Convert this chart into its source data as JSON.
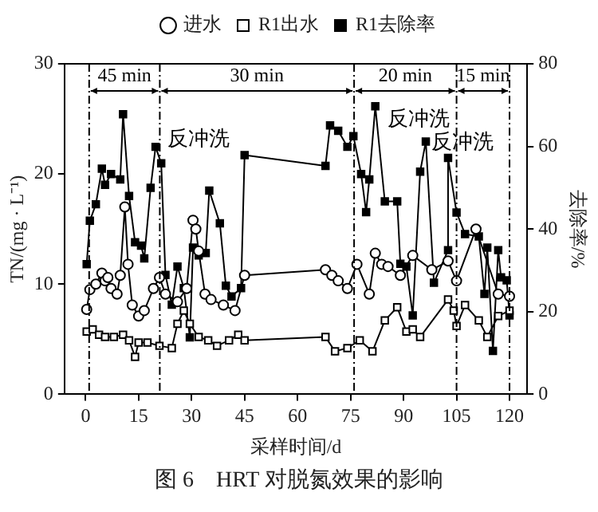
{
  "chart_data": {
    "type": "line",
    "title": "图 6　HRT 对脱氮效果的影响",
    "xlabel": "采样时间/d",
    "ylabel": "TN/(mg · L⁻¹)",
    "y2label": "去除率/%",
    "xlim": [
      -6,
      125
    ],
    "xticks": [
      0,
      15,
      30,
      45,
      60,
      75,
      90,
      105,
      120
    ],
    "ylim": [
      0,
      30
    ],
    "yticks": [
      0,
      10,
      20,
      30
    ],
    "y2lim": [
      0,
      80
    ],
    "y2ticks": [
      0,
      20,
      40,
      60,
      80
    ],
    "legend": "top",
    "grid": false,
    "ref_lines": [
      {
        "axis": "x",
        "value": 1,
        "line_style": "dashed"
      },
      {
        "axis": "x",
        "value": 21,
        "line_style": "dashed"
      },
      {
        "axis": "x",
        "value": 76,
        "line_style": "dashed"
      },
      {
        "axis": "x",
        "value": 105,
        "line_style": "dashed"
      },
      {
        "axis": "x",
        "value": 120,
        "line_style": "dashed"
      }
    ],
    "annotations": [
      "45 min",
      "30 min",
      "20 min",
      "15 min",
      "反冲洗",
      "反冲洗",
      "反冲洗"
    ],
    "series": [
      {
        "name": "进水",
        "color": "#000000",
        "marker": "circle",
        "x": [
          0.3,
          1.2,
          2.9,
          4.6,
          5.5,
          6.3,
          7.2,
          8.9,
          9.8,
          11.1,
          12,
          13.2,
          15,
          16.6,
          19.2,
          20.9,
          22.6,
          26,
          28.6,
          30.4,
          31.2,
          32,
          33.8,
          35.5,
          39,
          42.3,
          45,
          67.9,
          69.7,
          71.5,
          74.1,
          76.8,
          80.3,
          82,
          83.8,
          85.6,
          89.1,
          92.6,
          98,
          102.6,
          105,
          110.5,
          116.8,
          120
        ],
        "values": [
          7.7,
          9.5,
          10,
          11,
          10.3,
          10.6,
          9.6,
          9.1,
          10.8,
          17,
          11.8,
          8.1,
          7.1,
          7.6,
          9.6,
          10.6,
          9.1,
          8.4,
          9.6,
          15.8,
          15,
          13,
          9.1,
          8.6,
          8.1,
          7.6,
          10.8,
          11.3,
          10.8,
          10.3,
          9.6,
          11.8,
          9.1,
          12.8,
          11.8,
          11.6,
          10.8,
          12.6,
          11.3,
          12.1,
          10.3,
          15,
          9.1,
          8.9
        ]
      },
      {
        "name": "R1出水",
        "color": "#000000",
        "marker": "square",
        "x": [
          0.3,
          2,
          3.8,
          5.5,
          8,
          10.6,
          12.3,
          14,
          15,
          17.5,
          20.9,
          24.4,
          26,
          27.8,
          29.5,
          32,
          34.7,
          37.2,
          40.6,
          43.2,
          45,
          67.9,
          70.6,
          74.1,
          77.6,
          81.2,
          84.7,
          88.2,
          90.8,
          92.6,
          94.7,
          102.6,
          104.2,
          105,
          107.4,
          111.3,
          113.7,
          116.8,
          120
        ],
        "values": [
          5.7,
          5.9,
          5.4,
          5.2,
          5.2,
          5.4,
          4.9,
          3.4,
          4.7,
          4.7,
          4.4,
          4.2,
          6.4,
          7.6,
          6.4,
          5.2,
          4.9,
          4.4,
          4.9,
          5.4,
          4.9,
          5.2,
          3.9,
          4.2,
          4.9,
          3.9,
          6.7,
          7.9,
          5.7,
          5.9,
          5.2,
          8.6,
          7.6,
          6.2,
          8.1,
          6.7,
          5.2,
          7.1,
          7.6
        ]
      },
      {
        "name": "R1去除率",
        "color": "#000000",
        "marker": "square",
        "axis": "y2",
        "x": [
          0.3,
          1.2,
          2.9,
          4.6,
          5.5,
          7.2,
          9.8,
          10.6,
          12.3,
          14,
          15.7,
          16.6,
          18.4,
          19.8,
          21.4,
          22.6,
          24.4,
          26,
          27.8,
          29.5,
          30.4,
          32,
          34,
          35,
          38,
          39.7,
          41.3,
          44,
          45,
          67.9,
          69.2,
          71.5,
          74.1,
          75.8,
          78,
          79.4,
          80.3,
          82,
          84.7,
          88.2,
          89.1,
          90.8,
          92.6,
          94.7,
          96.3,
          98.6,
          102.6,
          102.6,
          105,
          107.4,
          111.3,
          112.9,
          113.7,
          115.3,
          116.8,
          117.6,
          119.2,
          120
        ],
        "values": [
          31.5,
          42,
          46,
          54.6,
          50.7,
          53.3,
          52,
          67.8,
          48,
          36.8,
          36,
          32.9,
          50,
          59.9,
          55.9,
          28.9,
          21.7,
          30.9,
          25.7,
          13.8,
          35.5,
          33.6,
          34.2,
          49.3,
          41.4,
          26.3,
          23.7,
          25.7,
          57.9,
          55.3,
          65.1,
          63.8,
          59.9,
          62.5,
          53.3,
          44.1,
          52,
          69.7,
          46.7,
          46.7,
          31.6,
          30.9,
          19.1,
          53.9,
          61.2,
          27,
          34.9,
          57.2,
          44,
          38.8,
          38.2,
          24.3,
          35.5,
          10.5,
          34.9,
          28.3,
          27.6,
          19.1
        ]
      }
    ]
  }
}
